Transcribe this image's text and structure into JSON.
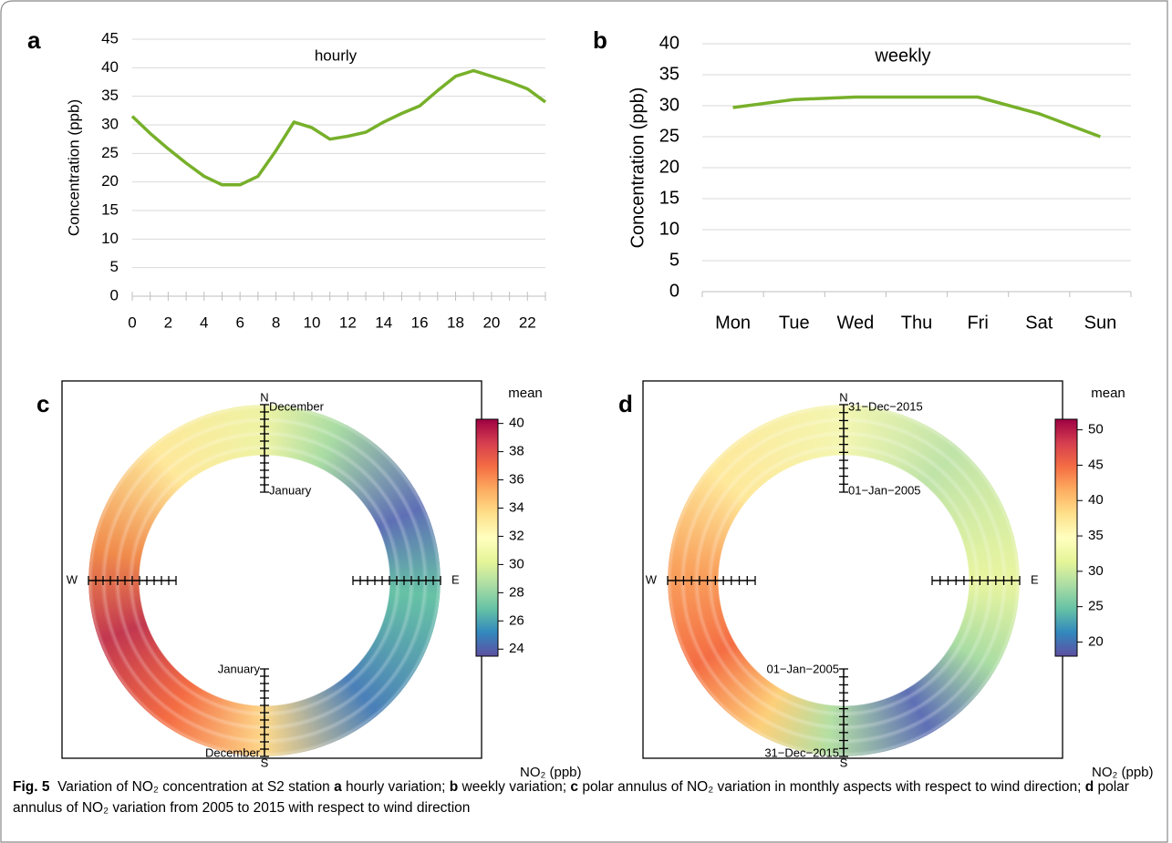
{
  "chart_data": [
    {
      "type": "line",
      "panel": "a",
      "title": "hourly",
      "ylabel": "Concentration (ppb)",
      "x": [
        0,
        1,
        2,
        3,
        4,
        5,
        6,
        7,
        8,
        9,
        10,
        11,
        12,
        13,
        14,
        15,
        16,
        17,
        18,
        19,
        20,
        21,
        22,
        23
      ],
      "values": [
        31.5,
        28.5,
        25.8,
        23.3,
        21,
        19.5,
        19.5,
        21,
        25.5,
        30.5,
        29.5,
        27.5,
        28,
        28.7,
        30.5,
        32,
        33.3,
        36,
        38.5,
        39.5,
        38.5,
        37.5,
        36.3,
        34
      ],
      "color": "#77b02a",
      "xlim": [
        0,
        23
      ],
      "xticks": [
        0,
        2,
        4,
        6,
        8,
        10,
        12,
        14,
        16,
        18,
        20,
        22
      ],
      "ylim": [
        0,
        45
      ],
      "yticks": [
        0,
        5,
        10,
        15,
        20,
        25,
        30,
        35,
        40,
        45
      ],
      "grid": true
    },
    {
      "type": "line",
      "panel": "b",
      "title": "weekly",
      "ylabel": "Concentration (ppb)",
      "categories": [
        "Mon",
        "Tue",
        "Wed",
        "Thu",
        "Fri",
        "Sat",
        "Sun"
      ],
      "values": [
        29.7,
        31,
        31.4,
        31.4,
        31.4,
        28.7,
        25
      ],
      "color": "#77b02a",
      "ylim": [
        0,
        40
      ],
      "yticks": [
        0,
        5,
        10,
        15,
        20,
        25,
        30,
        35,
        40
      ],
      "grid": true
    },
    {
      "type": "polar-annulus",
      "panel": "c",
      "compass": [
        "N",
        "E",
        "S",
        "W"
      ],
      "scale_start": "January",
      "scale_end": "December",
      "colorbar_title": "mean",
      "colorbar_label": "NO₂ (ppb)",
      "clim": [
        23.5,
        40.3
      ],
      "cticks": [
        24,
        26,
        28,
        30,
        32,
        34,
        36,
        38,
        40
      ],
      "colors": [
        "#9e0142",
        "#d53e4f",
        "#f46d43",
        "#fdae61",
        "#fee08b",
        "#ffffbf",
        "#e6f598",
        "#abdda4",
        "#66c2a5",
        "#3288bd",
        "#5e4fa2"
      ]
    },
    {
      "type": "polar-annulus",
      "panel": "d",
      "compass": [
        "N",
        "E",
        "S",
        "W"
      ],
      "scale_start": "01−Jan−2005",
      "scale_end": "31−Dec−2015",
      "colorbar_title": "mean",
      "colorbar_label": "NO₂ (ppb)",
      "clim": [
        18,
        51.5
      ],
      "cticks": [
        20,
        25,
        30,
        35,
        40,
        45,
        50
      ],
      "colors": [
        "#9e0142",
        "#d53e4f",
        "#f46d43",
        "#fdae61",
        "#fee08b",
        "#ffffbf",
        "#e6f598",
        "#abdda4",
        "#66c2a5",
        "#3288bd",
        "#5e4fa2"
      ]
    }
  ],
  "caption": [
    {
      "text": "Fig. 5",
      "bold": true
    },
    {
      "text": "  Variation of NO₂ concentration at S2 station ",
      "bold": false
    },
    {
      "text": "a",
      "bold": true
    },
    {
      "text": " hourly variation; ",
      "bold": false
    },
    {
      "text": "b",
      "bold": true
    },
    {
      "text": " weekly variation; ",
      "bold": false
    },
    {
      "text": "c",
      "bold": true
    },
    {
      "text": " polar annulus of NO₂ variation in monthly aspects with respect to wind direction; ",
      "bold": false
    },
    {
      "text": "d",
      "bold": true
    },
    {
      "text": " polar annulus of NO₂ variation from 2005 to 2015 with respect to wind direction",
      "bold": false
    }
  ]
}
